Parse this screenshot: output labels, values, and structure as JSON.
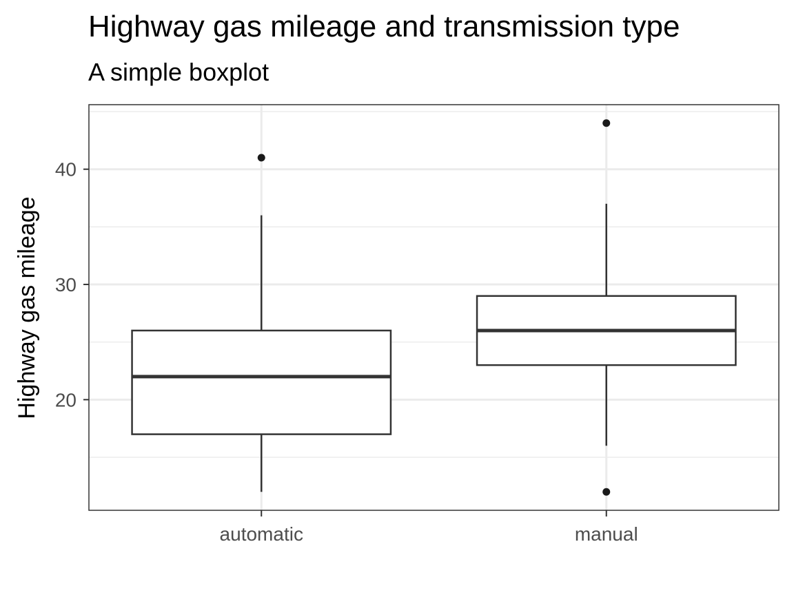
{
  "chart_data": {
    "type": "boxplot",
    "title": "Highway gas mileage and transmission type",
    "subtitle": "A simple boxplot",
    "xlabel": "",
    "ylabel": "Highway gas mileage",
    "categories": [
      "automatic",
      "manual"
    ],
    "boxes": [
      {
        "category": "automatic",
        "whisker_low": 12,
        "q1": 17,
        "median": 22,
        "q3": 26,
        "whisker_high": 36,
        "outliers": [
          41
        ]
      },
      {
        "category": "manual",
        "whisker_low": 16,
        "q1": 23,
        "median": 26,
        "q3": 29,
        "whisker_high": 37,
        "outliers": [
          12,
          44
        ]
      }
    ],
    "yticks": [
      20,
      30,
      40
    ],
    "ytick_labels": [
      "20",
      "30",
      "40"
    ],
    "ylim": [
      10.4,
      45.6
    ],
    "grid": true,
    "legend": "none",
    "colors": {
      "box_fill": "#ffffff",
      "box_line": "#333333",
      "outlier": "#1a1a1a",
      "grid": "#ebebeb",
      "panel_border": "#333333",
      "tick_label": "#4d4d4d"
    }
  }
}
